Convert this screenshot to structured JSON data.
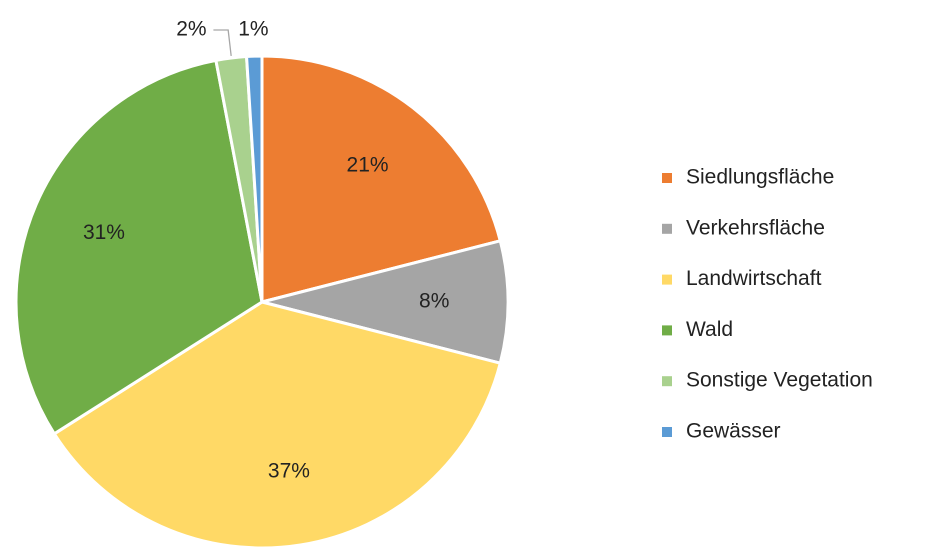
{
  "chart_data": {
    "type": "pie",
    "categories": [
      "Siedlungsfläche",
      "Verkehrsfläche",
      "Landwirtschaft",
      "Wald",
      "Sonstige Vegetation",
      "Gewässer"
    ],
    "values": [
      21,
      8,
      37,
      31,
      2,
      1
    ],
    "value_labels": [
      "21%",
      "8%",
      "37%",
      "31%",
      "2%",
      "1%"
    ],
    "colors": [
      "#ED7D31",
      "#A5A5A5",
      "#FFD966",
      "#70AD47",
      "#A9D18E",
      "#5B9BD5"
    ],
    "legend": "right"
  }
}
